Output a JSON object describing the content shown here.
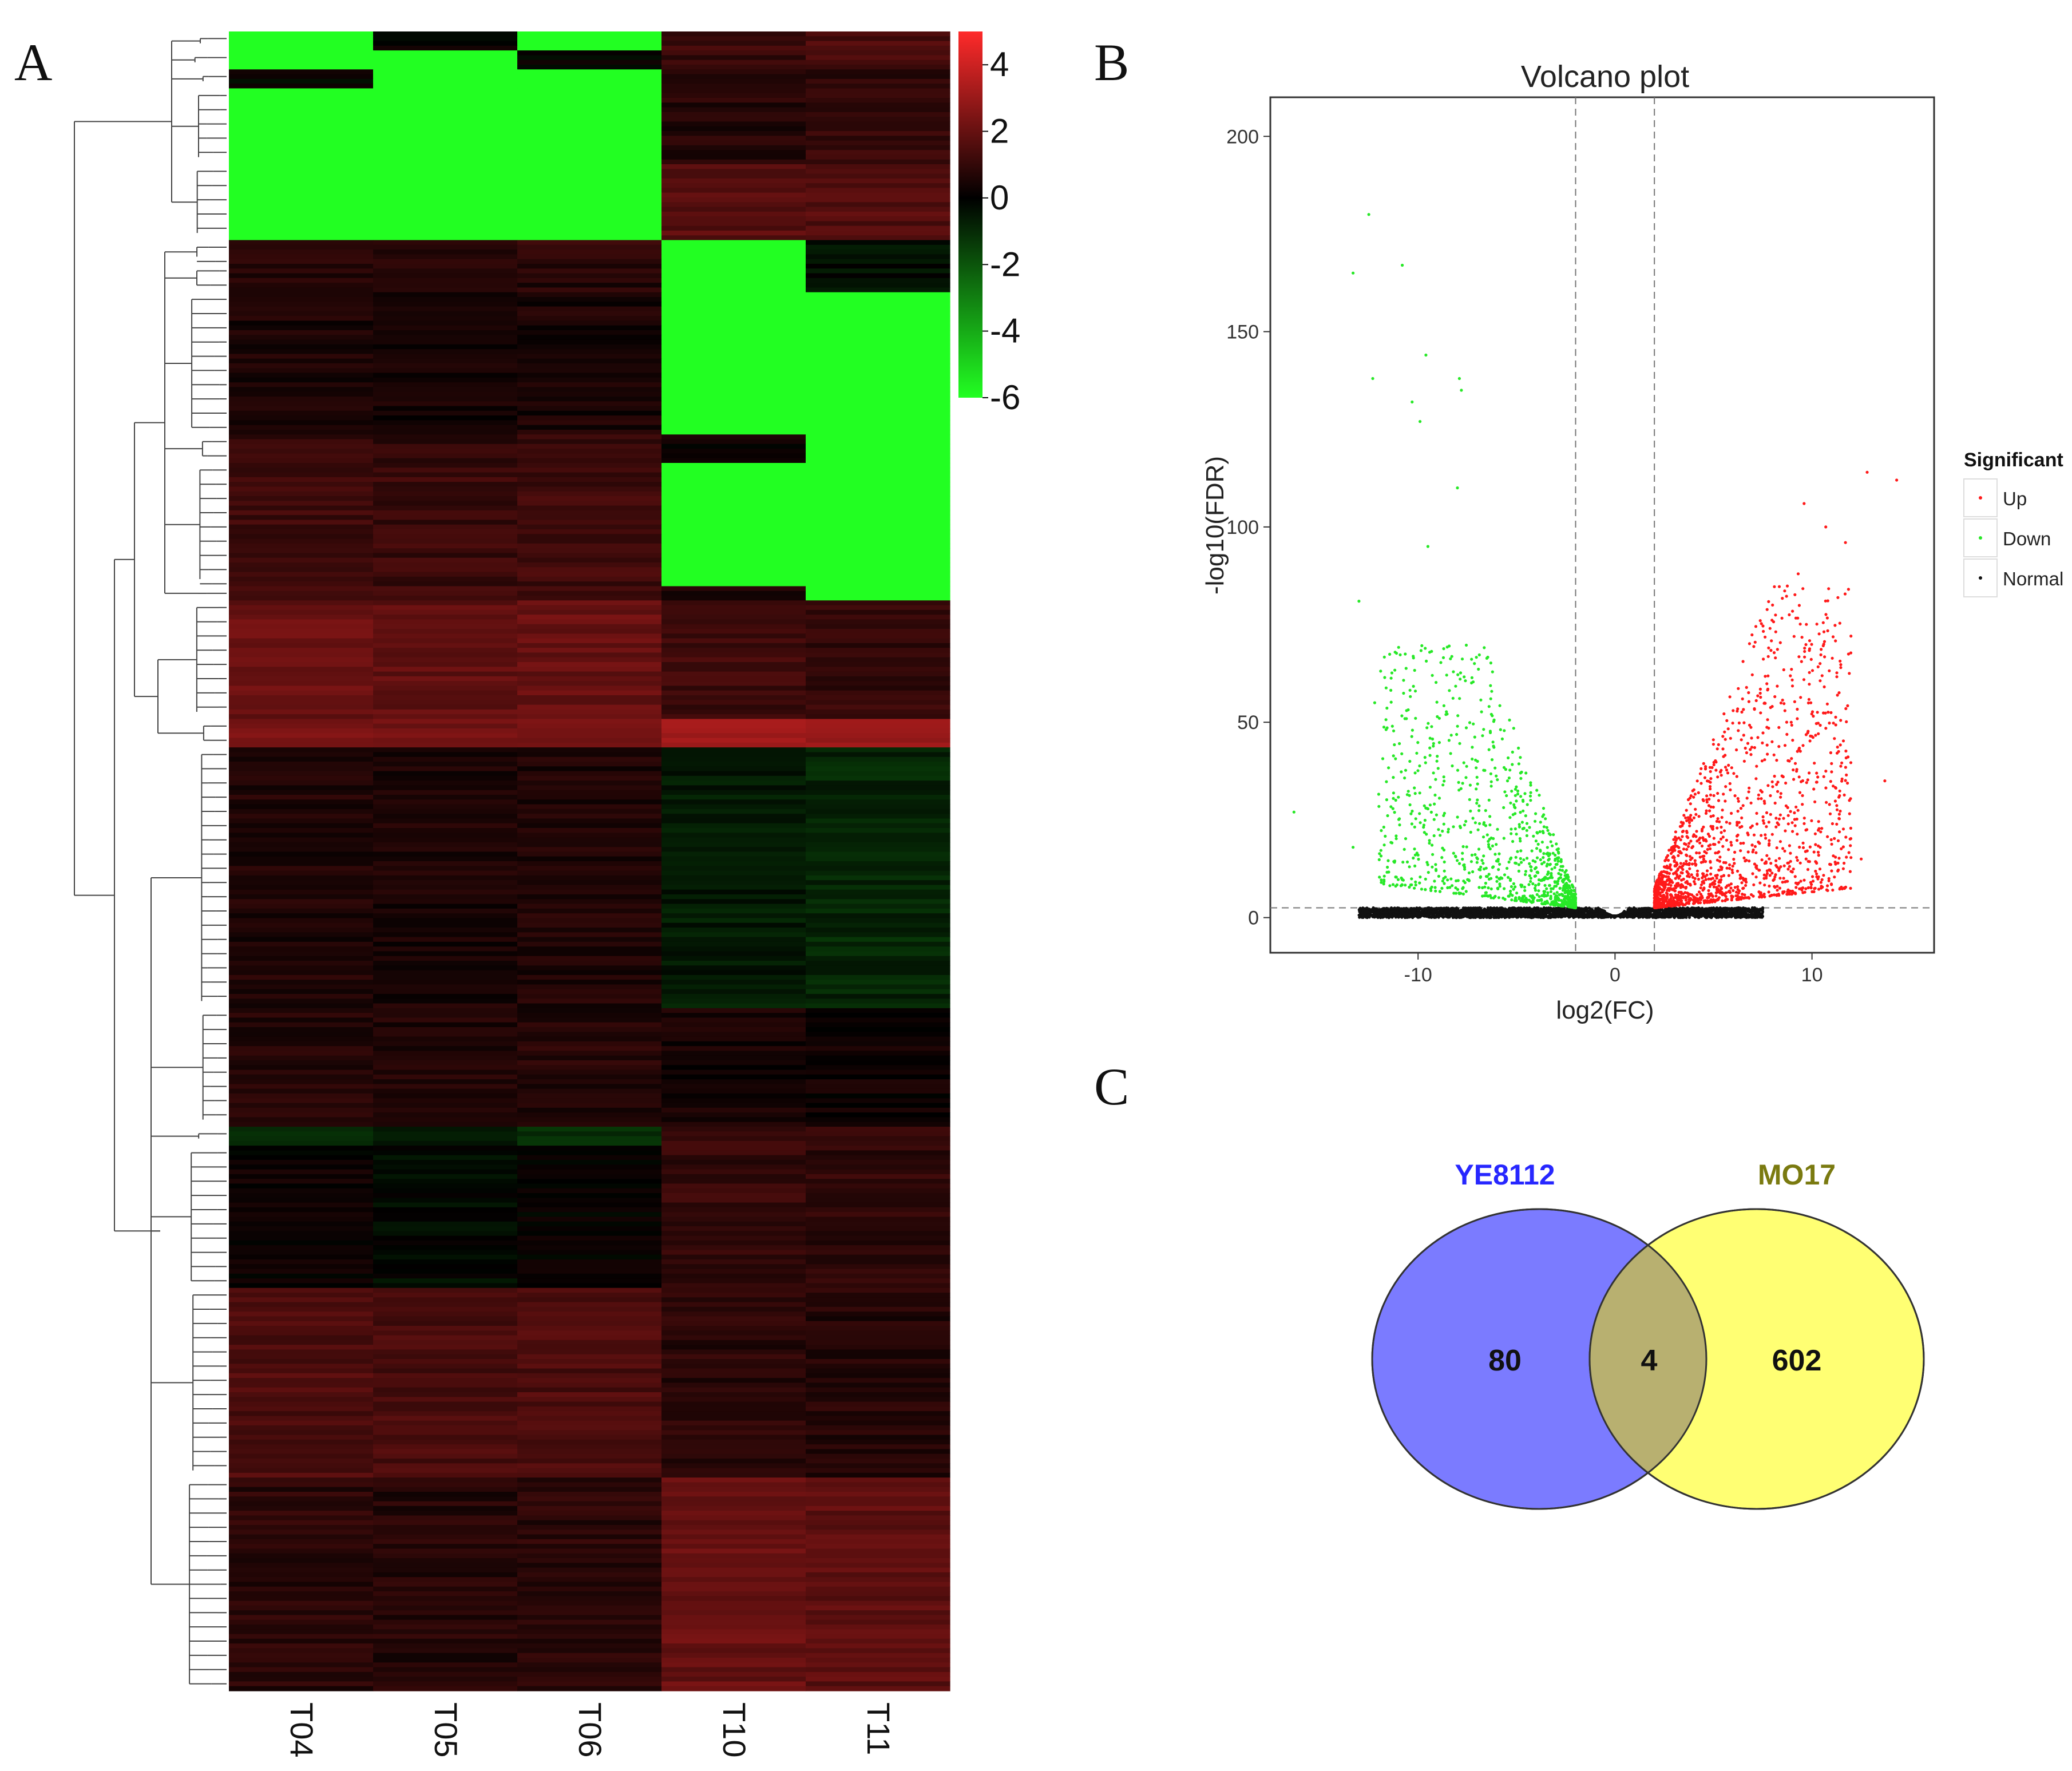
{
  "panel_labels": {
    "a": "A",
    "b": "B",
    "c": "C"
  },
  "colors": {
    "high": "#ff2a2a",
    "mid": "#000000",
    "low": "#22ff22",
    "up": "#ff1a1a",
    "down": "#27e827",
    "normal": "#111111",
    "ye8112": "#7b7bff",
    "ye8112_text": "#2727ff",
    "mo17": "#ffff73",
    "mo17_text": "#7a7a10",
    "overlap": "#b8b070"
  },
  "chart_data": [
    {
      "type": "heatmap",
      "panel": "A",
      "title": "",
      "columns": [
        "T04",
        "T05",
        "T06",
        "T10",
        "T11"
      ],
      "color_scale": {
        "min": -6,
        "max": 5,
        "ticks": [
          "4",
          "2",
          "0",
          "-2",
          "-4",
          "-6"
        ],
        "tick_values": [
          4,
          2,
          0,
          -2,
          -4,
          -6
        ]
      },
      "row_blocks": [
        {
          "rows": 4,
          "values": [
            -6,
            0,
            -6,
            1.2,
            1.5
          ]
        },
        {
          "rows": 4,
          "values": [
            -6,
            -6,
            0,
            1.0,
            1.3
          ]
        },
        {
          "rows": 4,
          "values": [
            0,
            -6,
            -6,
            0.6,
            0.9
          ]
        },
        {
          "rows": 16,
          "values": [
            -6,
            -6,
            -6,
            0.7,
            1.0
          ]
        },
        {
          "rows": 16,
          "values": [
            -6,
            -6,
            -6,
            1.7,
            1.6
          ]
        },
        {
          "rows": 5,
          "values": [
            1.0,
            0.9,
            1.0,
            -6,
            -0.5
          ]
        },
        {
          "rows": 6,
          "values": [
            0.6,
            0.6,
            0.7,
            -6,
            -0.3
          ]
        },
        {
          "rows": 30,
          "values": [
            0.5,
            0.4,
            0.5,
            -6,
            -6
          ]
        },
        {
          "rows": 6,
          "values": [
            1.0,
            0.9,
            1.0,
            0.2,
            -6
          ]
        },
        {
          "rows": 26,
          "values": [
            1.2,
            1.1,
            1.2,
            -6,
            -6
          ]
        },
        {
          "rows": 3,
          "values": [
            1.3,
            1.2,
            1.3,
            0.6,
            -6
          ]
        },
        {
          "rows": 25,
          "values": [
            2.0,
            1.9,
            2.0,
            1.2,
            1.0
          ]
        },
        {
          "rows": 6,
          "values": [
            2.4,
            2.3,
            2.4,
            3.0,
            2.8
          ]
        },
        {
          "rows": 55,
          "values": [
            0.6,
            0.5,
            0.6,
            -0.6,
            -0.9
          ]
        },
        {
          "rows": 25,
          "values": [
            0.7,
            0.6,
            0.7,
            0.4,
            0.3
          ]
        },
        {
          "rows": 4,
          "values": [
            -0.9,
            -0.8,
            -0.9,
            1.2,
            1.1
          ]
        },
        {
          "rows": 30,
          "values": [
            0.2,
            -0.2,
            0.0,
            1.0,
            0.9
          ]
        },
        {
          "rows": 40,
          "values": [
            1.5,
            1.4,
            1.5,
            0.8,
            0.7
          ]
        },
        {
          "rows": 45,
          "values": [
            0.8,
            0.7,
            0.8,
            2.0,
            1.8
          ]
        }
      ]
    },
    {
      "type": "scatter",
      "panel": "B",
      "title": "Volcano plot",
      "xlabel": "log2(FC)",
      "ylabel": "-log10(FDR)",
      "xlim": [
        -17.5,
        16.2
      ],
      "ylim": [
        -9,
        210
      ],
      "xticks": [
        -10,
        0,
        10
      ],
      "yticks": [
        0,
        50,
        100,
        150,
        200
      ],
      "fc_thresholds": [
        -2,
        2
      ],
      "fdr_threshold": 2.5,
      "legend": {
        "title": "Significant",
        "position": "right",
        "entries": [
          "Up",
          "Down",
          "Normal"
        ]
      },
      "outliers": {
        "down": [
          [
            -12.5,
            180
          ],
          [
            -13.3,
            165
          ],
          [
            -10.8,
            167
          ],
          [
            -12.3,
            138
          ],
          [
            -9.6,
            144
          ],
          [
            -7.9,
            138
          ],
          [
            -7.8,
            135
          ],
          [
            -10.3,
            132
          ],
          [
            -9.9,
            127
          ],
          [
            -13.0,
            81
          ],
          [
            -12.2,
            55
          ],
          [
            -13.3,
            18
          ],
          [
            -16.3,
            27
          ],
          [
            -8.0,
            110
          ],
          [
            -9.5,
            95
          ]
        ],
        "up": [
          [
            12.8,
            114
          ],
          [
            14.3,
            112
          ],
          [
            9.6,
            106
          ],
          [
            10.7,
            100
          ],
          [
            11.7,
            96
          ],
          [
            13.7,
            35
          ],
          [
            12.5,
            15
          ],
          [
            11.9,
            30
          ],
          [
            10.6,
            70
          ],
          [
            9.3,
            88
          ],
          [
            8.0,
            80
          ]
        ]
      },
      "generated_series": [
        {
          "name": "Up",
          "count": 1500,
          "x_range": [
            2,
            12
          ],
          "y_max": 85
        },
        {
          "name": "Down",
          "count": 1000,
          "x_range": [
            -12,
            -2
          ],
          "y_max": 70
        },
        {
          "name": "Normal",
          "count": 3200,
          "x_range": [
            -13,
            7.5
          ],
          "y_max": 2.5
        }
      ]
    },
    {
      "type": "venn",
      "panel": "C",
      "sets": [
        {
          "name": "YE8112",
          "only": 80
        },
        {
          "name": "MO17",
          "only": 602
        }
      ],
      "intersection": 4
    }
  ]
}
